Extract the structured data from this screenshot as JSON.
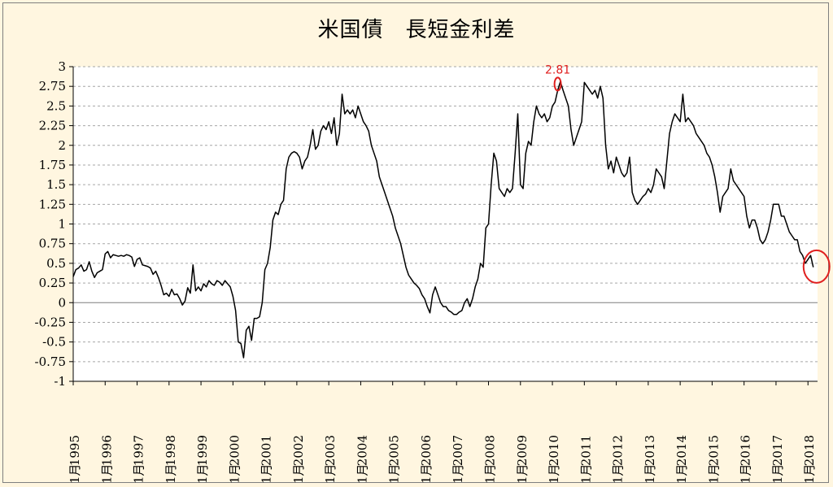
{
  "chart_data": {
    "type": "line",
    "title": "米国債　長短金利差",
    "ylim": [
      -1,
      3
    ],
    "y_ticks": [
      3,
      2.75,
      2.5,
      2.25,
      2,
      1.75,
      1.5,
      1.25,
      1,
      0.75,
      0.5,
      0.25,
      0,
      -0.25,
      -0.5,
      -0.75,
      -1
    ],
    "y_tick_labels": [
      "3",
      "2.75",
      "2.5",
      "2.25",
      "2",
      "1.75",
      "1.5",
      "1.25",
      "1",
      "0.75",
      "0.5",
      "0.25",
      "0",
      "-0.25",
      "-0.5",
      "-0.75",
      "-1"
    ],
    "x_tick_labels": [
      "1995",
      "1996",
      "1997",
      "1998",
      "1999",
      "2000",
      "2001",
      "2002",
      "2003",
      "2004",
      "2005",
      "2006",
      "2007",
      "2008",
      "2009",
      "2010",
      "2011",
      "2012",
      "2013",
      "2014",
      "2015",
      "2016",
      "2017",
      "2018"
    ],
    "x_month_label": "1月",
    "grid": true,
    "colors": {
      "line": "#000000",
      "grid": "#a6a6a6",
      "highlight": "#e0201f",
      "plot_bg": "#ffffff",
      "chart_bg": "#fff6e0"
    },
    "annotations": [
      {
        "label": "2.81",
        "x": "2010-03",
        "y": 2.81,
        "marker": "ellipse"
      },
      {
        "label": "",
        "x": "2018-03",
        "y": 0.5,
        "marker": "ellipse"
      }
    ],
    "series": [
      {
        "x_start": "1995-01",
        "step": "month",
        "values": [
          0.33,
          0.42,
          0.44,
          0.48,
          0.4,
          0.42,
          0.52,
          0.4,
          0.32,
          0.38,
          0.4,
          0.42,
          0.62,
          0.65,
          0.57,
          0.61,
          0.6,
          0.59,
          0.6,
          0.59,
          0.61,
          0.6,
          0.58,
          0.46,
          0.55,
          0.57,
          0.48,
          0.47,
          0.46,
          0.44,
          0.36,
          0.4,
          0.32,
          0.22,
          0.1,
          0.12,
          0.08,
          0.17,
          0.1,
          0.11,
          0.05,
          -0.03,
          0.02,
          0.19,
          0.12,
          0.48,
          0.15,
          0.2,
          0.15,
          0.24,
          0.2,
          0.28,
          0.24,
          0.22,
          0.28,
          0.26,
          0.22,
          0.28,
          0.24,
          0.2,
          0.08,
          -0.1,
          -0.5,
          -0.52,
          -0.7,
          -0.35,
          -0.3,
          -0.48,
          -0.2,
          -0.2,
          -0.18,
          0.0,
          0.42,
          0.5,
          0.7,
          1.05,
          1.15,
          1.12,
          1.25,
          1.3,
          1.7,
          1.85,
          1.9,
          1.92,
          1.9,
          1.85,
          1.7,
          1.8,
          1.85,
          2.0,
          2.2,
          1.95,
          2.0,
          2.18,
          2.25,
          2.2,
          2.3,
          2.15,
          2.35,
          2.0,
          2.15,
          2.65,
          2.4,
          2.45,
          2.4,
          2.45,
          2.35,
          2.5,
          2.4,
          2.3,
          2.25,
          2.18,
          2.0,
          1.9,
          1.8,
          1.6,
          1.5,
          1.4,
          1.3,
          1.2,
          1.1,
          0.95,
          0.85,
          0.75,
          0.6,
          0.45,
          0.35,
          0.3,
          0.25,
          0.22,
          0.18,
          0.1,
          0.05,
          -0.05,
          -0.13,
          0.1,
          0.2,
          0.1,
          0.0,
          -0.05,
          -0.05,
          -0.1,
          -0.12,
          -0.15,
          -0.15,
          -0.12,
          -0.1,
          0.0,
          0.05,
          -0.05,
          0.05,
          0.2,
          0.3,
          0.5,
          0.45,
          0.95,
          1.0,
          1.5,
          1.9,
          1.8,
          1.45,
          1.4,
          1.35,
          1.45,
          1.4,
          1.45,
          1.9,
          2.4,
          1.5,
          1.45,
          1.9,
          2.05,
          2.0,
          2.3,
          2.5,
          2.4,
          2.35,
          2.4,
          2.3,
          2.35,
          2.5,
          2.55,
          2.7,
          2.81,
          2.7,
          2.6,
          2.5,
          2.2,
          2.0,
          2.1,
          2.2,
          2.3,
          2.8,
          2.75,
          2.7,
          2.65,
          2.7,
          2.6,
          2.75,
          2.6,
          2.0,
          1.7,
          1.8,
          1.65,
          1.85,
          1.75,
          1.65,
          1.6,
          1.65,
          1.85,
          1.4,
          1.3,
          1.25,
          1.3,
          1.35,
          1.38,
          1.45,
          1.4,
          1.5,
          1.7,
          1.65,
          1.6,
          1.45,
          1.8,
          2.15,
          2.3,
          2.4,
          2.35,
          2.3,
          2.65,
          2.3,
          2.35,
          2.3,
          2.25,
          2.15,
          2.1,
          2.05,
          2.0,
          1.9,
          1.85,
          1.75,
          1.6,
          1.4,
          1.15,
          1.35,
          1.4,
          1.45,
          1.7,
          1.55,
          1.5,
          1.45,
          1.4,
          1.35,
          1.1,
          0.95,
          1.05,
          1.05,
          0.95,
          0.8,
          0.75,
          0.8,
          0.9,
          1.05,
          1.25,
          1.25,
          1.25,
          1.1,
          1.1,
          1.0,
          0.9,
          0.85,
          0.8,
          0.8,
          0.65,
          0.6,
          0.5,
          0.55,
          0.6,
          0.45
        ]
      }
    ]
  }
}
